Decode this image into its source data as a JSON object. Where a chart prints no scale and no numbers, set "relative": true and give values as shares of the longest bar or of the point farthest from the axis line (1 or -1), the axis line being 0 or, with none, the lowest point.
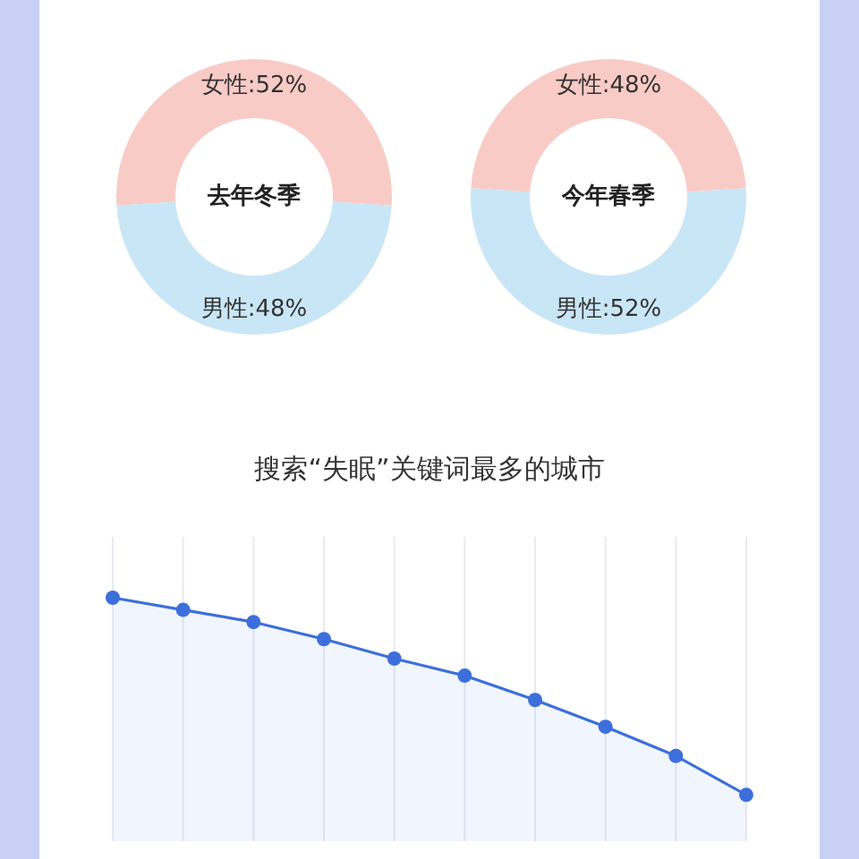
{
  "chart_data": [
    {
      "type": "donut",
      "annotations": [
        "去年冬季"
      ],
      "categories": [
        "女性",
        "男性"
      ],
      "values": [
        52,
        48
      ],
      "colors": [
        "#f9cbc6",
        "#c9e6f6"
      ],
      "value_labels": [
        ":52%",
        ":48%"
      ]
    },
    {
      "type": "donut",
      "annotations": [
        "今年春季"
      ],
      "categories": [
        "女性",
        "男性"
      ],
      "values": [
        48,
        52
      ],
      "colors": [
        "#f9cbc6",
        "#c9e6f6"
      ],
      "value_labels": [
        ":48%",
        ":52%"
      ]
    },
    {
      "type": "area",
      "title": "搜索“失眠”关键词最多的城市",
      "relative": true,
      "categories": [
        null,
        null,
        null,
        null,
        null,
        null,
        null,
        null,
        null,
        null
      ],
      "series": [
        {
          "color": "#3d6fdc",
          "values": [
            1.0,
            0.95,
            0.9,
            0.83,
            0.75,
            0.68,
            0.58,
            0.47,
            0.35,
            0.19
          ]
        }
      ],
      "marker": "circle",
      "grid": "x"
    }
  ]
}
